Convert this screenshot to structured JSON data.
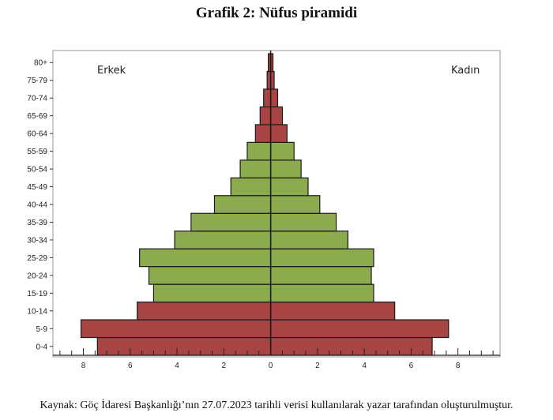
{
  "title": "Grafik 2: Nüfus piramidi",
  "source": "Kaynak: Göç İdaresi Başkanlığı’nın 27.07.2023 tarihli verisi kullanılarak yazar tarafından oluşturulmuştur.",
  "chart_data": {
    "type": "bar",
    "orientation": "horizontal",
    "title": "Grafik 2: Nüfus piramidi",
    "left_label": "Erkek",
    "right_label": "Kadın",
    "categories": [
      "0-4",
      "5-9",
      "10-14",
      "15-19",
      "20-24",
      "25-29",
      "30-34",
      "35-39",
      "40-44",
      "45-49",
      "50-54",
      "55-59",
      "60-64",
      "65-69",
      "70-74",
      "75-79",
      "80+"
    ],
    "series": [
      {
        "name": "Erkek",
        "values": [
          7.4,
          8.1,
          5.7,
          5.0,
          5.2,
          5.6,
          4.1,
          3.4,
          2.4,
          1.7,
          1.3,
          1.0,
          0.65,
          0.45,
          0.3,
          0.15,
          0.1
        ]
      },
      {
        "name": "Kadın",
        "values": [
          6.9,
          7.6,
          5.3,
          4.4,
          4.3,
          4.4,
          3.3,
          2.8,
          2.1,
          1.6,
          1.3,
          1.0,
          0.7,
          0.5,
          0.3,
          0.15,
          0.1
        ]
      }
    ],
    "xlim": [
      -9.3,
      9.8
    ],
    "x_tick_labels": [
      "8",
      "6",
      "4",
      "2",
      "0",
      "2",
      "4",
      "6",
      "8"
    ],
    "x_tick_values": [
      -8,
      -6,
      -4,
      -2,
      0,
      2,
      4,
      6,
      8
    ],
    "colors": {
      "young": "#a84444",
      "working": "#8cab4e",
      "old": "#a84444",
      "edge": "#1a1a1a"
    },
    "young_groups": [
      "0-4",
      "5-9",
      "10-14"
    ],
    "old_groups": [
      "60-64",
      "65-69",
      "70-74",
      "75-79",
      "80+"
    ],
    "grid": false
  }
}
